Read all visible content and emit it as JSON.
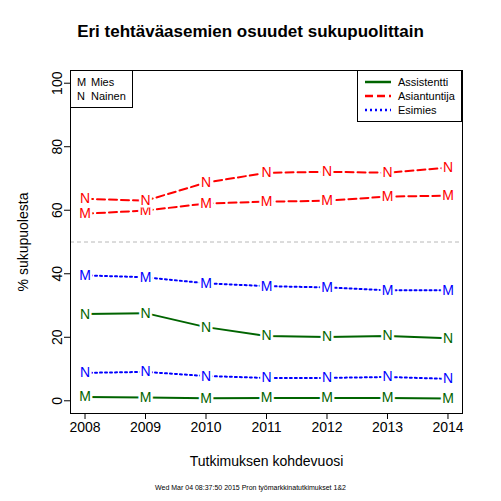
{
  "chart_data": {
    "type": "line",
    "title": "Eri tehtäväasemien osuudet sukupuolittain",
    "x_label": "Tutkimuksen kohdevuosi",
    "y_label": "% sukupuolesta",
    "caption": "Wed Mar 04 08:37:50 2015 Pron työmarkkinatutkimukset 1&2",
    "x": [
      2008,
      2009,
      2010,
      2011,
      2012,
      2013,
      2014
    ],
    "xlim": [
      2007.76,
      2014.24
    ],
    "xticks": [
      2008,
      2009,
      2010,
      2011,
      2012,
      2013,
      2014
    ],
    "ylim": [
      -4,
      104
    ],
    "yticks": [
      0,
      20,
      40,
      60,
      80,
      100
    ],
    "reference_lines": [
      50
    ],
    "legend": "top-right",
    "marker_legend": [
      {
        "marker": "M",
        "name": "Mies"
      },
      {
        "marker": "N",
        "name": "Nainen"
      }
    ],
    "series": [
      {
        "name": "Assistentti",
        "marker": "M",
        "color": "#006400",
        "line_style": "solid",
        "values": [
          1.2,
          1.0,
          0.8,
          0.9,
          0.9,
          0.9,
          0.7
        ]
      },
      {
        "name": "Assistentti",
        "marker": "N",
        "color": "#006400",
        "line_style": "solid",
        "values": [
          27.3,
          27.6,
          23.2,
          20.4,
          20.1,
          20.4,
          19.7
        ]
      },
      {
        "name": "Asiantuntija",
        "marker": "M",
        "color": "#ff0000",
        "line_style": "dashed",
        "values": [
          58.9,
          59.9,
          62.1,
          62.7,
          63.0,
          64.3,
          64.6
        ]
      },
      {
        "name": "Asiantuntija",
        "marker": "N",
        "color": "#ff0000",
        "line_style": "dashed",
        "values": [
          63.6,
          63.0,
          68.7,
          71.8,
          72.1,
          71.8,
          73.4
        ]
      },
      {
        "name": "Esimies",
        "marker": "M",
        "color": "#0000ff",
        "line_style": "dotted",
        "values": [
          39.5,
          38.9,
          37.0,
          36.1,
          35.7,
          34.8,
          34.8
        ]
      },
      {
        "name": "Esimies",
        "marker": "N",
        "color": "#0000ff",
        "line_style": "dotted",
        "values": [
          8.8,
          9.1,
          7.8,
          7.2,
          7.2,
          7.5,
          6.9
        ]
      }
    ]
  }
}
